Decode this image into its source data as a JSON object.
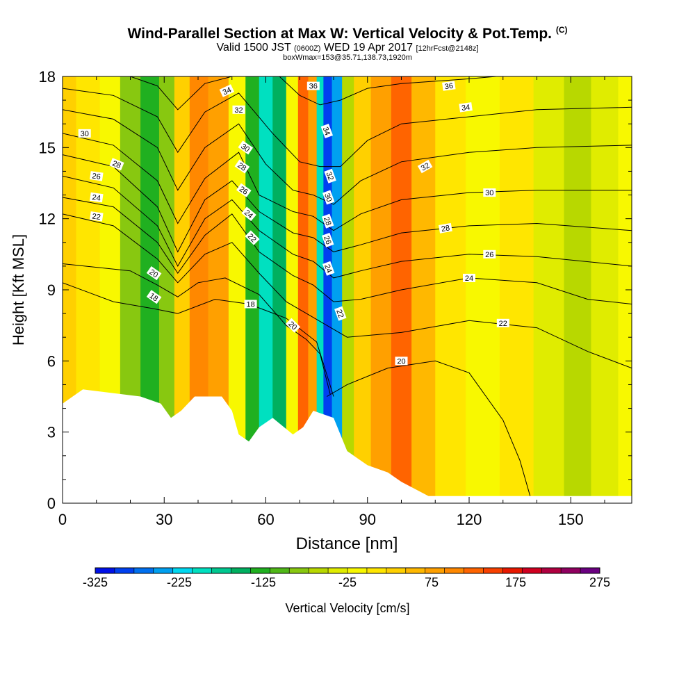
{
  "chart_data": {
    "type": "heatmap",
    "title": "Wind-Parallel Section at Max W: Vertical Velocity & Pot.Temp.",
    "title_mark": "(C)",
    "subtitle": {
      "valid": "Valid 1500 JST",
      "utc": "(0600Z)",
      "date": "WED 19 Apr 2017",
      "forecast": "[12hrFcst@2148z]"
    },
    "box_info": "boxWmax=153@35.71,138.73,1920m",
    "xlabel": "Distance [nm]",
    "ylabel": "Height [Kft MSL]",
    "xlim": [
      0,
      168
    ],
    "ylim": [
      0,
      18
    ],
    "xticks": [
      0,
      30,
      60,
      90,
      120,
      150
    ],
    "yticks": [
      0,
      3,
      6,
      9,
      12,
      15,
      18
    ],
    "colorbar": {
      "label": "Vertical Velocity [cm/s]",
      "min": -325,
      "max": 275,
      "step": 25,
      "tick_labels": [
        "-325",
        "-225",
        "-125",
        "-25",
        "75",
        "175",
        "275"
      ],
      "colors": [
        "#0010e8",
        "#0040f0",
        "#0070f0",
        "#00a0f0",
        "#00d8f0",
        "#00e0c0",
        "#00c890",
        "#00b060",
        "#20b020",
        "#50b818",
        "#88c810",
        "#b8d800",
        "#e0ec00",
        "#f8f800",
        "#ffe600",
        "#ffd000",
        "#ffb800",
        "#ffa000",
        "#ff8800",
        "#ff6400",
        "#f84000",
        "#e81800",
        "#d00020",
        "#b00040",
        "#900060",
        "#6a0080"
      ]
    },
    "velocity_bands": [
      {
        "x": 0,
        "value": 60
      },
      {
        "x": 8,
        "value": 40
      },
      {
        "x": 14,
        "value": 10
      },
      {
        "x": 20,
        "value": -60
      },
      {
        "x": 26,
        "value": -110
      },
      {
        "x": 31,
        "value": -70
      },
      {
        "x": 35,
        "value": 60
      },
      {
        "x": 40,
        "value": 140
      },
      {
        "x": 46,
        "value": 120
      },
      {
        "x": 52,
        "value": 20
      },
      {
        "x": 56,
        "value": -120
      },
      {
        "x": 60,
        "value": -180
      },
      {
        "x": 64,
        "value": -150
      },
      {
        "x": 68,
        "value": 10
      },
      {
        "x": 71,
        "value": 165
      },
      {
        "x": 74,
        "value": 120
      },
      {
        "x": 76,
        "value": -200
      },
      {
        "x": 78,
        "value": -300
      },
      {
        "x": 81,
        "value": -230
      },
      {
        "x": 84,
        "value": -50
      },
      {
        "x": 88,
        "value": 70
      },
      {
        "x": 94,
        "value": 110
      },
      {
        "x": 100,
        "value": 160
      },
      {
        "x": 106,
        "value": 90
      },
      {
        "x": 114,
        "value": 30
      },
      {
        "x": 124,
        "value": 20
      },
      {
        "x": 134,
        "value": 25
      },
      {
        "x": 144,
        "value": -20
      },
      {
        "x": 152,
        "value": -50
      },
      {
        "x": 160,
        "value": -10
      },
      {
        "x": 168,
        "value": 20
      }
    ],
    "terrain": [
      [
        0,
        4.2
      ],
      [
        3,
        4.5
      ],
      [
        6,
        4.8
      ],
      [
        23,
        4.5
      ],
      [
        29,
        4.2
      ],
      [
        32,
        3.6
      ],
      [
        35,
        3.9
      ],
      [
        39,
        4.5
      ],
      [
        47,
        4.5
      ],
      [
        50,
        3.9
      ],
      [
        52,
        2.9
      ],
      [
        55,
        2.6
      ],
      [
        58,
        3.2
      ],
      [
        62,
        3.6
      ],
      [
        68,
        2.9
      ],
      [
        71,
        3.2
      ],
      [
        74,
        3.9
      ],
      [
        80,
        3.6
      ],
      [
        84,
        2.2
      ],
      [
        87,
        1.9
      ],
      [
        90,
        1.6
      ],
      [
        96,
        1.3
      ],
      [
        100,
        0.9
      ],
      [
        104,
        0.6
      ],
      [
        108,
        0.3
      ],
      [
        168,
        0.3
      ]
    ],
    "isentropes": [
      {
        "theta": 18,
        "points": [
          [
            0,
            9.3
          ],
          [
            15,
            8.5
          ],
          [
            27,
            8.2
          ],
          [
            34,
            8.0
          ],
          [
            45,
            8.6
          ],
          [
            55,
            8.4
          ],
          [
            66,
            7.8
          ],
          [
            75,
            6.8
          ],
          [
            80,
            4.5
          ]
        ]
      },
      {
        "theta": 20,
        "points": [
          [
            0,
            10.1
          ],
          [
            20,
            9.8
          ],
          [
            28,
            9.2
          ],
          [
            34,
            8.7
          ],
          [
            40,
            9.3
          ],
          [
            48,
            9.5
          ],
          [
            58,
            8.8
          ],
          [
            66,
            7.5
          ],
          [
            72,
            6.9
          ],
          [
            76,
            6.3
          ],
          [
            79,
            4.6
          ]
        ]
      },
      {
        "theta": 20,
        "points": [
          [
            78,
            4.5
          ],
          [
            84,
            5.0
          ],
          [
            96,
            5.7
          ],
          [
            110,
            6.0
          ],
          [
            120,
            5.5
          ],
          [
            130,
            3.5
          ],
          [
            135,
            1.8
          ],
          [
            138,
            0.3
          ]
        ]
      },
      {
        "theta": 22,
        "points": [
          [
            0,
            12.2
          ],
          [
            15,
            11.7
          ],
          [
            28,
            10.3
          ],
          [
            34,
            9.3
          ],
          [
            42,
            10.5
          ],
          [
            50,
            11.0
          ],
          [
            58,
            9.7
          ],
          [
            66,
            8.5
          ],
          [
            72,
            8.0
          ],
          [
            78,
            7.5
          ],
          [
            84,
            7.0
          ],
          [
            100,
            7.2
          ],
          [
            120,
            7.7
          ],
          [
            140,
            7.4
          ],
          [
            155,
            6.4
          ],
          [
            168,
            5.7
          ]
        ]
      },
      {
        "theta": 24,
        "points": [
          [
            0,
            12.9
          ],
          [
            15,
            12.5
          ],
          [
            28,
            11.0
          ],
          [
            34,
            9.7
          ],
          [
            42,
            11.3
          ],
          [
            50,
            12.2
          ],
          [
            58,
            10.6
          ],
          [
            68,
            9.6
          ],
          [
            74,
            9.2
          ],
          [
            80,
            8.5
          ],
          [
            88,
            8.6
          ],
          [
            100,
            9.0
          ],
          [
            120,
            9.5
          ],
          [
            140,
            9.3
          ],
          [
            155,
            8.6
          ],
          [
            168,
            8.4
          ]
        ]
      },
      {
        "theta": 26,
        "points": [
          [
            0,
            13.8
          ],
          [
            15,
            13.3
          ],
          [
            28,
            11.7
          ],
          [
            34,
            10.0
          ],
          [
            42,
            12.0
          ],
          [
            50,
            12.8
          ],
          [
            58,
            11.5
          ],
          [
            68,
            10.5
          ],
          [
            74,
            10.2
          ],
          [
            80,
            9.5
          ],
          [
            88,
            9.8
          ],
          [
            100,
            10.2
          ],
          [
            120,
            10.5
          ],
          [
            140,
            10.4
          ],
          [
            168,
            10.0
          ]
        ]
      },
      {
        "theta": 28,
        "points": [
          [
            0,
            14.7
          ],
          [
            15,
            14.2
          ],
          [
            28,
            12.5
          ],
          [
            34,
            10.6
          ],
          [
            42,
            12.8
          ],
          [
            50,
            13.6
          ],
          [
            58,
            12.3
          ],
          [
            68,
            11.4
          ],
          [
            74,
            11.2
          ],
          [
            80,
            10.6
          ],
          [
            88,
            10.9
          ],
          [
            100,
            11.4
          ],
          [
            120,
            11.7
          ],
          [
            140,
            11.8
          ],
          [
            168,
            11.5
          ]
        ]
      },
      {
        "theta": 30,
        "points": [
          [
            0,
            15.6
          ],
          [
            15,
            15.1
          ],
          [
            28,
            13.6
          ],
          [
            34,
            11.8
          ],
          [
            42,
            13.7
          ],
          [
            52,
            14.8
          ],
          [
            58,
            13.0
          ],
          [
            68,
            12.3
          ],
          [
            74,
            12.1
          ],
          [
            80,
            11.5
          ],
          [
            88,
            12.2
          ],
          [
            100,
            12.8
          ],
          [
            120,
            13.1
          ],
          [
            140,
            13.2
          ],
          [
            168,
            13.2
          ]
        ]
      },
      {
        "theta": 32,
        "points": [
          [
            0,
            16.6
          ],
          [
            15,
            16.2
          ],
          [
            28,
            15.0
          ],
          [
            34,
            13.2
          ],
          [
            42,
            15.0
          ],
          [
            52,
            16.0
          ],
          [
            60,
            14.3
          ],
          [
            68,
            13.2
          ],
          [
            74,
            13.0
          ],
          [
            80,
            12.6
          ],
          [
            88,
            13.6
          ],
          [
            100,
            14.4
          ],
          [
            120,
            14.8
          ],
          [
            140,
            15.0
          ],
          [
            168,
            15.1
          ]
        ]
      },
      {
        "theta": 34,
        "points": [
          [
            0,
            17.5
          ],
          [
            15,
            17.2
          ],
          [
            28,
            16.3
          ],
          [
            34,
            14.8
          ],
          [
            42,
            16.5
          ],
          [
            52,
            17.3
          ],
          [
            62,
            15.6
          ],
          [
            70,
            14.4
          ],
          [
            76,
            14.2
          ],
          [
            82,
            14.2
          ],
          [
            90,
            15.3
          ],
          [
            100,
            16.0
          ],
          [
            120,
            16.3
          ],
          [
            140,
            16.6
          ],
          [
            168,
            16.7
          ]
        ]
      },
      {
        "theta": 36,
        "points": [
          [
            20,
            18.0
          ],
          [
            28,
            17.6
          ],
          [
            34,
            16.6
          ],
          [
            42,
            17.7
          ],
          [
            50,
            18.0
          ]
        ]
      },
      {
        "theta": 36,
        "points": [
          [
            64,
            18.0
          ],
          [
            70,
            17.2
          ],
          [
            76,
            16.8
          ],
          [
            82,
            17.0
          ],
          [
            90,
            17.5
          ],
          [
            100,
            17.7
          ],
          [
            120,
            17.9
          ],
          [
            128,
            18.0
          ]
        ]
      }
    ],
    "contour_labels": [
      {
        "text": "30",
        "x": 6.5,
        "y": 15.6,
        "angle": 0
      },
      {
        "text": "28",
        "x": 16,
        "y": 14.3,
        "angle": 22
      },
      {
        "text": "26",
        "x": 10,
        "y": 13.8,
        "angle": 8
      },
      {
        "text": "24",
        "x": 10,
        "y": 12.9,
        "angle": 8
      },
      {
        "text": "22",
        "x": 10,
        "y": 12.1,
        "angle": 8
      },
      {
        "text": "20",
        "x": 27,
        "y": 9.7,
        "angle": 35
      },
      {
        "text": "18",
        "x": 27,
        "y": 8.7,
        "angle": 35
      },
      {
        "text": "34",
        "x": 48.5,
        "y": 17.4,
        "angle": -25
      },
      {
        "text": "32",
        "x": 52,
        "y": 16.6,
        "angle": 0
      },
      {
        "text": "30",
        "x": 54,
        "y": 15.0,
        "angle": 35
      },
      {
        "text": "28",
        "x": 53,
        "y": 14.2,
        "angle": 35
      },
      {
        "text": "26",
        "x": 53.5,
        "y": 13.2,
        "angle": 35
      },
      {
        "text": "24",
        "x": 55,
        "y": 12.2,
        "angle": 40
      },
      {
        "text": "22",
        "x": 56,
        "y": 11.2,
        "angle": 45
      },
      {
        "text": "18",
        "x": 55.5,
        "y": 8.4,
        "angle": 0
      },
      {
        "text": "20",
        "x": 68,
        "y": 7.5,
        "angle": 45
      },
      {
        "text": "36",
        "x": 74,
        "y": 17.6,
        "angle": 0
      },
      {
        "text": "34",
        "x": 78,
        "y": 15.7,
        "angle": 70
      },
      {
        "text": "32",
        "x": 79,
        "y": 13.8,
        "angle": 70
      },
      {
        "text": "30",
        "x": 78.5,
        "y": 12.9,
        "angle": 70
      },
      {
        "text": "28",
        "x": 78.3,
        "y": 11.9,
        "angle": 70
      },
      {
        "text": "26",
        "x": 78.3,
        "y": 11.1,
        "angle": 70
      },
      {
        "text": "24",
        "x": 78.5,
        "y": 9.9,
        "angle": 70
      },
      {
        "text": "22",
        "x": 82,
        "y": 8.0,
        "angle": 70
      },
      {
        "text": "36",
        "x": 114,
        "y": 17.6,
        "angle": -8
      },
      {
        "text": "34",
        "x": 119,
        "y": 16.7,
        "angle": -8
      },
      {
        "text": "32",
        "x": 107,
        "y": 14.2,
        "angle": -30
      },
      {
        "text": "30",
        "x": 126,
        "y": 13.1,
        "angle": 0
      },
      {
        "text": "28",
        "x": 113,
        "y": 11.6,
        "angle": -10
      },
      {
        "text": "26",
        "x": 126,
        "y": 10.5,
        "angle": 0
      },
      {
        "text": "24",
        "x": 120,
        "y": 9.5,
        "angle": 0
      },
      {
        "text": "22",
        "x": 130,
        "y": 7.6,
        "angle": 0
      },
      {
        "text": "20",
        "x": 100,
        "y": 6.0,
        "angle": 0
      }
    ]
  }
}
